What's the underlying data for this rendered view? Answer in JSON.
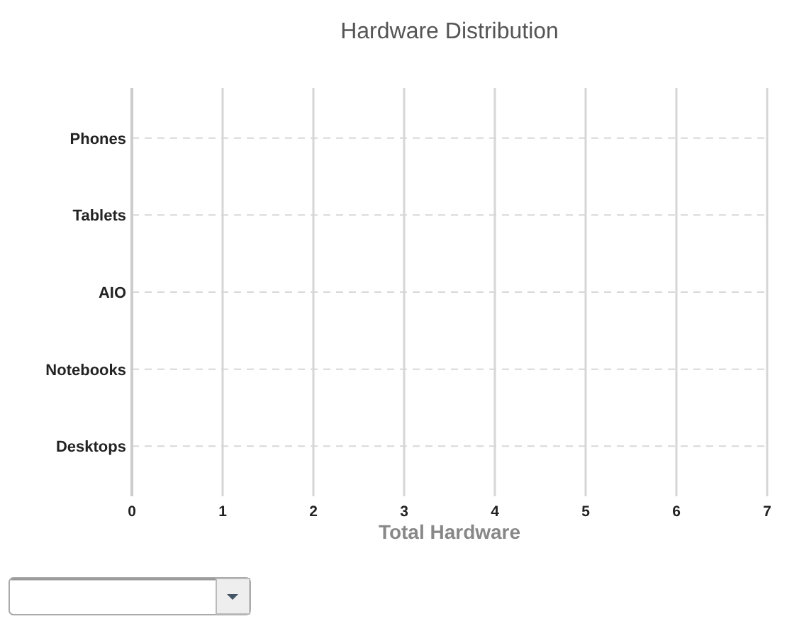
{
  "chart_data": {
    "type": "bar",
    "orientation": "horizontal",
    "title": "Hardware Distribution",
    "xlabel": "Total Hardware",
    "categories": [
      "Phones",
      "Tablets",
      "AIO",
      "Notebooks",
      "Desktops"
    ],
    "values": [
      null,
      null,
      null,
      null,
      null
    ],
    "xlim": [
      0,
      7
    ],
    "xticks": [
      0,
      1,
      2,
      3,
      4,
      5,
      6,
      7
    ],
    "grid": true
  }
}
